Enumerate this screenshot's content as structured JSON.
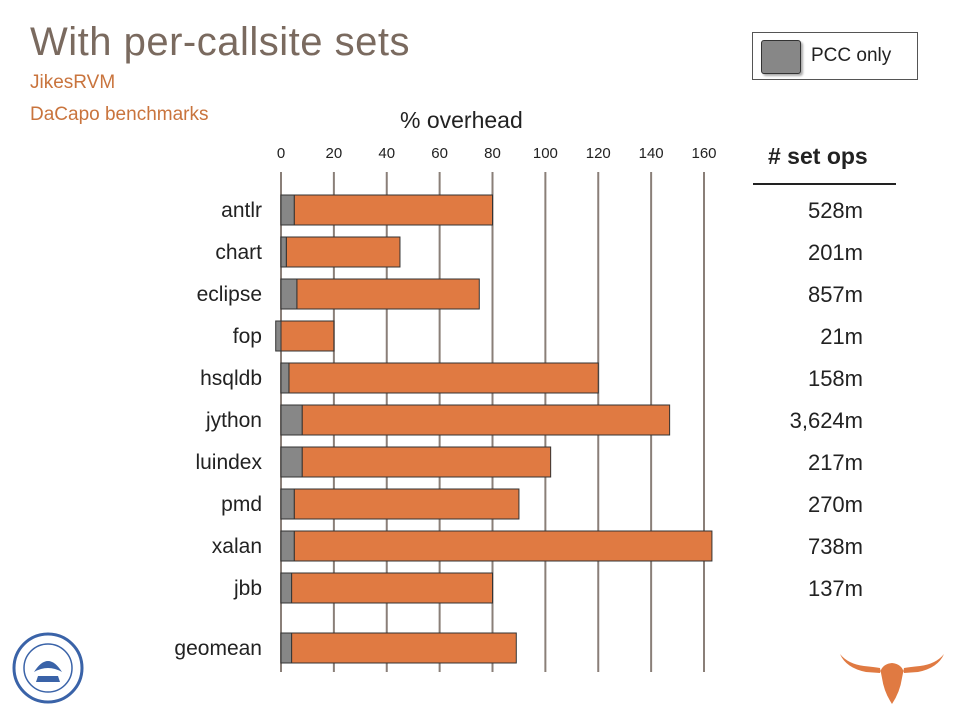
{
  "slide": {
    "title": "With per-callsite sets",
    "subtitle_line1": "JikesRVM",
    "subtitle_line2": "DaCapo benchmarks"
  },
  "legend": {
    "label": "PCC only",
    "color": "#878787"
  },
  "chart_data": {
    "type": "bar",
    "orientation": "horizontal",
    "stacked": true,
    "title": "",
    "xlabel": "% overhead",
    "xlim": [
      0,
      160
    ],
    "xticks": [
      "0",
      "20",
      "40",
      "60",
      "80",
      "100",
      "120",
      "140",
      "160"
    ],
    "categories": [
      "antlr",
      "chart",
      "eclipse",
      "fop",
      "hsqldb",
      "jython",
      "luindex",
      "pmd",
      "xalan",
      "jbb",
      "geomean"
    ],
    "series": [
      {
        "name": "PCC only",
        "color": "#878787",
        "values": [
          5,
          2,
          6,
          -2,
          3,
          8,
          8,
          5,
          5,
          4,
          4
        ]
      },
      {
        "name": "",
        "color": "#e07a42",
        "values": [
          75,
          43,
          69,
          22,
          117,
          139,
          94,
          85,
          158,
          76,
          85
        ]
      }
    ],
    "grid": true,
    "legend_position": "top-right"
  },
  "set_ops": {
    "header": "# set ops",
    "values": [
      "528m",
      "201m",
      "857m",
      "21m",
      "158m",
      "3,624m",
      "217m",
      "270m",
      "738m",
      "137m"
    ]
  },
  "logos": {
    "left": "university-seal",
    "right": "longhorn-logo",
    "colors": {
      "seal": "#3a63a8",
      "longhorn": "#e07a42"
    }
  }
}
